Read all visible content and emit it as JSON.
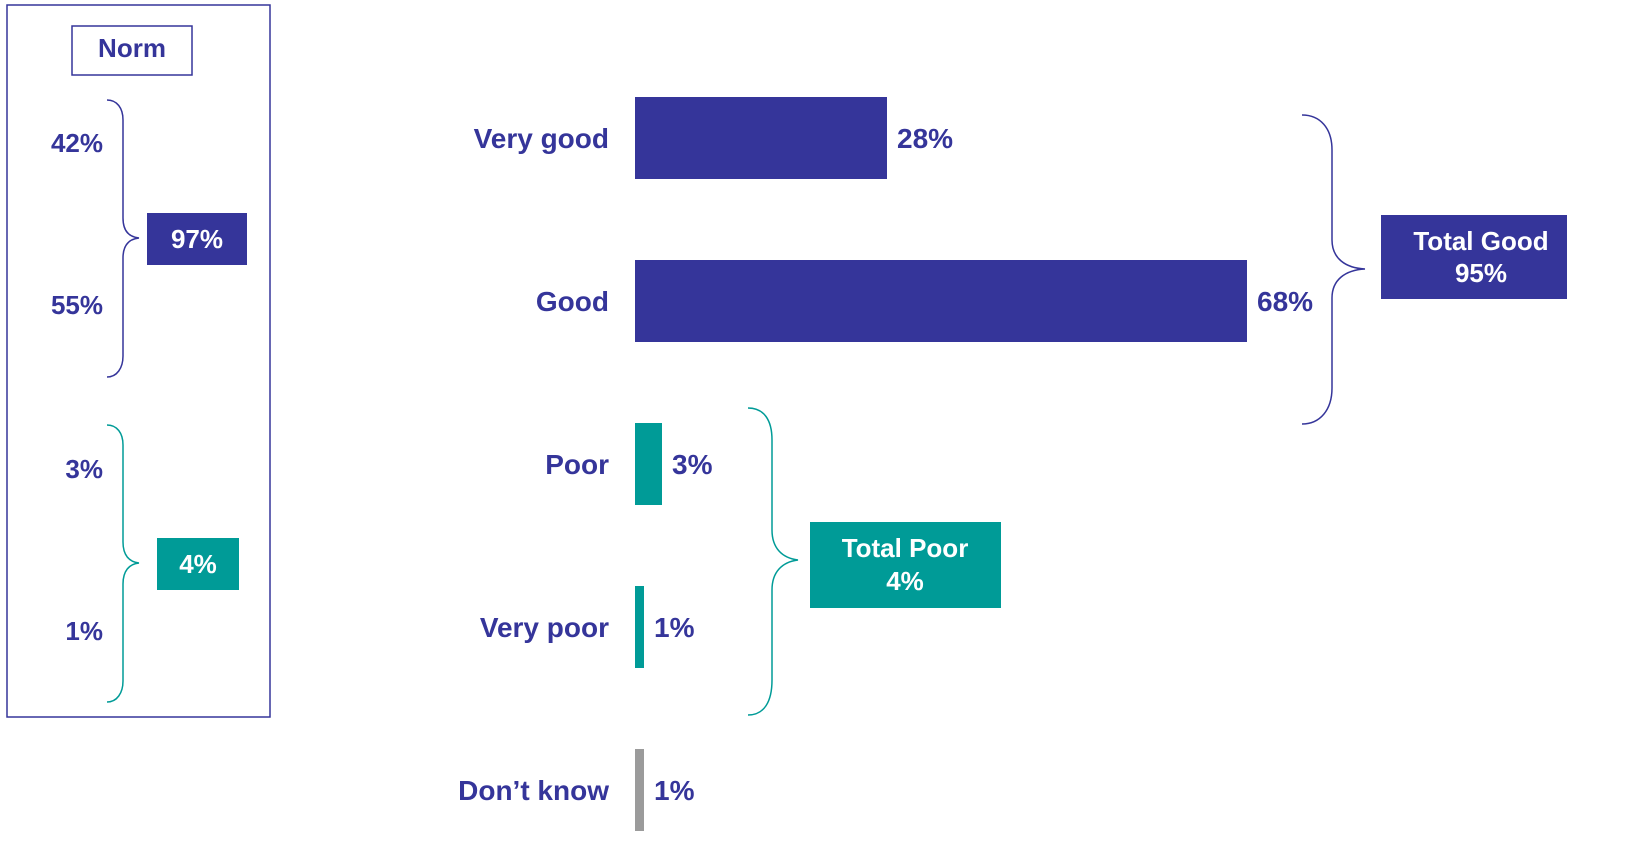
{
  "colors": {
    "good": "#35359A",
    "poor": "#009B97",
    "neutral": "#9B9B9B",
    "text": "#35359A",
    "box_text": "#FFFFFF"
  },
  "norm_panel": {
    "title": "Norm",
    "values": [
      "42%",
      "55%",
      "3%",
      "1%"
    ],
    "total_good": "97%",
    "total_poor": "4%"
  },
  "summary": {
    "total_good_label": "Total Good",
    "total_good_value": "95%",
    "total_poor_label": "Total Poor",
    "total_poor_value": "4%"
  },
  "chart_data": {
    "type": "bar",
    "orientation": "horizontal",
    "categories": [
      "Very good",
      "Good",
      "Poor",
      "Very poor",
      "Don’t know"
    ],
    "values": [
      28,
      68,
      3,
      1,
      1
    ],
    "value_labels": [
      "28%",
      "68%",
      "3%",
      "1%",
      "1%"
    ],
    "groups": [
      "good",
      "good",
      "poor",
      "poor",
      "neutral"
    ],
    "xlim": [
      0,
      100
    ],
    "grid": false,
    "legend": "none"
  }
}
